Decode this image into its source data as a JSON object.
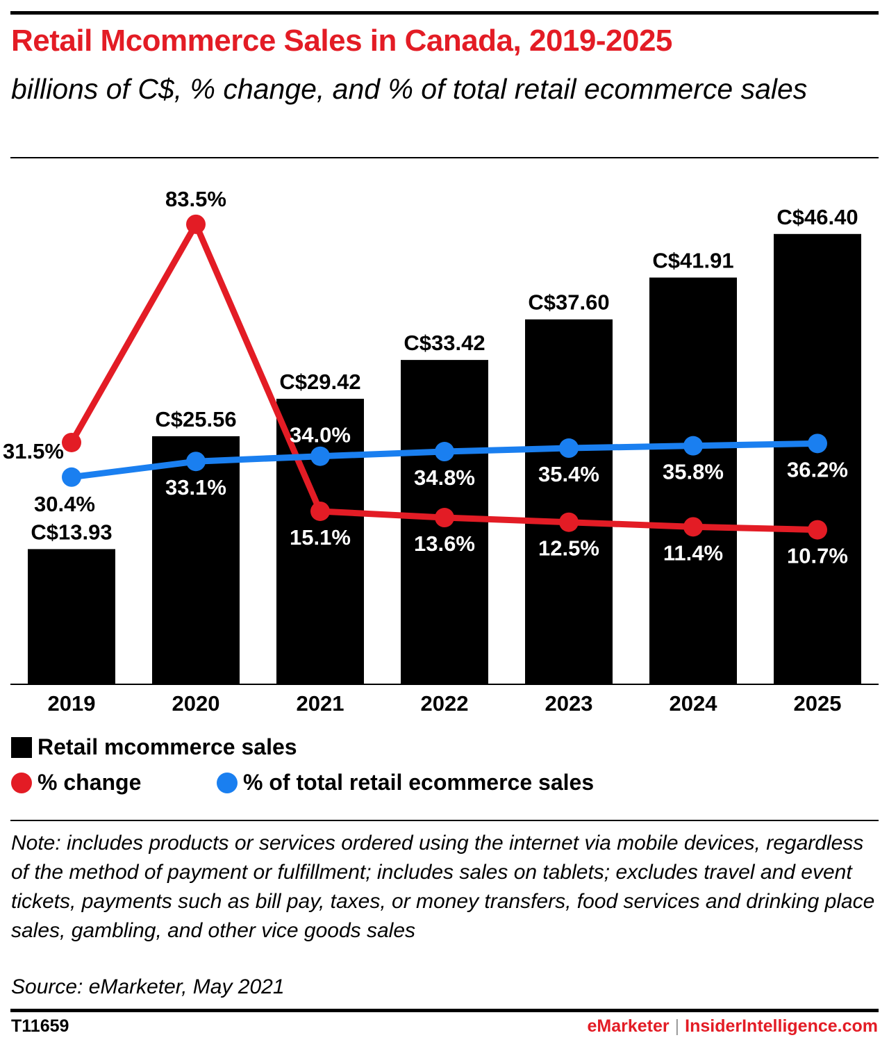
{
  "header": {
    "title": "Retail Mcommerce Sales in Canada, 2019-2025",
    "subtitle": "billions of C$, % change, and % of total retail ecommerce sales"
  },
  "chart_data": {
    "type": "bar",
    "categories": [
      "2019",
      "2020",
      "2021",
      "2022",
      "2023",
      "2024",
      "2025"
    ],
    "series": [
      {
        "name": "Retail mcommerce sales",
        "type": "bar",
        "color": "#000000",
        "values": [
          13.93,
          25.56,
          29.42,
          33.42,
          37.6,
          41.91,
          46.4
        ],
        "labels": [
          "C$13.93",
          "C$25.56",
          "C$29.42",
          "C$33.42",
          "C$37.60",
          "C$41.91",
          "C$46.40"
        ]
      },
      {
        "name": "% change",
        "type": "line",
        "color": "#e31c25",
        "values": [
          31.5,
          83.5,
          15.1,
          13.6,
          12.5,
          11.4,
          10.7
        ],
        "labels": [
          "31.5%",
          "83.5%",
          "15.1%",
          "13.6%",
          "12.5%",
          "11.4%",
          "10.7%"
        ]
      },
      {
        "name": "% of total retail ecommerce sales",
        "type": "line",
        "color": "#1a7ff0",
        "values": [
          30.4,
          33.1,
          34.0,
          34.8,
          35.4,
          35.8,
          36.2
        ],
        "labels": [
          "30.4%",
          "33.1%",
          "34.0%",
          "34.8%",
          "35.4%",
          "35.8%",
          "36.2%"
        ]
      }
    ],
    "legend": {
      "placement": "bottom-left"
    },
    "grid": false
  },
  "footer": {
    "note": "Note: includes products or services ordered using the internet via mobile devices, regardless of the method of payment or fulfillment; includes sales on tablets; excludes travel and event tickets, payments such as bill pay, taxes, or money transfers, food services and drinking place sales, gambling, and other vice goods sales",
    "source": "Source: eMarketer, May 2021",
    "code": "T11659",
    "brand1": "eMarketer",
    "separator": "|",
    "brand2": "InsiderIntelligence.com"
  },
  "colors": {
    "accent": "#e31c25",
    "blue": "#1a7ff0"
  }
}
